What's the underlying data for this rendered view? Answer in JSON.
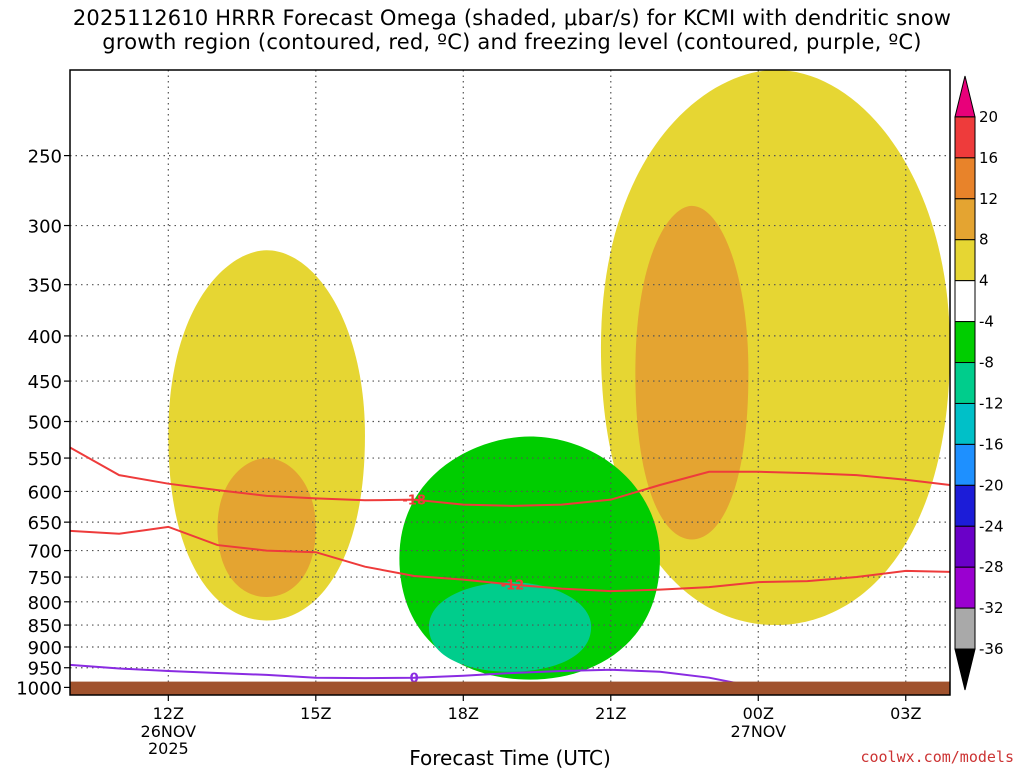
{
  "title_line1": "2025112610 HRRR Forecast Omega (shaded, μbar/s) for KCMI with dendritic snow",
  "title_line2": "growth region (contoured, red, ºC) and freezing level (contoured, purple, ºC)",
  "credit": "coolwx.com/models",
  "chart_data": {
    "type": "heatmap",
    "xlabel": "Forecast Time (UTC)",
    "ylabel": "",
    "x_ticks": [
      {
        "label": "12Z",
        "sub": [
          "26NOV",
          "2025"
        ],
        "hour": 12
      },
      {
        "label": "15Z",
        "sub": [],
        "hour": 15
      },
      {
        "label": "18Z",
        "sub": [],
        "hour": 18
      },
      {
        "label": "21Z",
        "sub": [],
        "hour": 21
      },
      {
        "label": "00Z",
        "sub": [
          "27NOV"
        ],
        "hour": 24
      },
      {
        "label": "03Z",
        "sub": [],
        "hour": 27
      }
    ],
    "xlim_hours": [
      10,
      27.9
    ],
    "y_scale": "log-pressure (inverted)",
    "y_ticks": [
      250,
      300,
      350,
      400,
      450,
      500,
      550,
      600,
      650,
      700,
      750,
      800,
      850,
      900,
      950,
      1000
    ],
    "ylim_hPa": [
      200,
      1020
    ],
    "grid": true,
    "colorbar": {
      "ticks": [
        "20",
        "16",
        "12",
        "8",
        "4",
        "-4",
        "-8",
        "-12",
        "-16",
        "-20",
        "-24",
        "-28",
        "-32",
        "-36"
      ],
      "colors": [
        "#e8007a",
        "#ee3b3b",
        "#e8832a",
        "#e4a431",
        "#e6d633",
        "#ffffff",
        "#00cd00",
        "#00cd8c",
        "#00c0c8",
        "#1e90ff",
        "#1c1cd8",
        "#6a00c8",
        "#9a00d0",
        "#a9a9a9",
        "#000000"
      ]
    },
    "omega_regions": [
      {
        "name": "upward motion 4-8",
        "color": "#e6d633",
        "hour": [
          12,
          16
        ],
        "pressure": [
          320,
          840
        ]
      },
      {
        "name": "upward motion 8-12",
        "color": "#e4a431",
        "hour": [
          13,
          15
        ],
        "pressure": [
          550,
          790
        ]
      },
      {
        "name": "upward motion 4-8",
        "color": "#e6d633",
        "hour": [
          20.8,
          27.9
        ],
        "pressure": [
          200,
          850
        ]
      },
      {
        "name": "upward motion 8-12",
        "color": "#e4a431",
        "hour": [
          21.5,
          23.8
        ],
        "pressure": [
          285,
          680
        ]
      },
      {
        "name": "downward motion -4 to -8",
        "color": "#00cd00",
        "hour": [
          16.7,
          22
        ],
        "pressure": [
          520,
          980
        ]
      },
      {
        "name": "downward motion -8 to -12",
        "color": "#00cd8c",
        "hour": [
          17.3,
          20.6
        ],
        "pressure": [
          760,
          960
        ]
      }
    ],
    "contours": [
      {
        "label": "-18",
        "color": "#ee3b3b",
        "hours": [
          10,
          11,
          12,
          13,
          14,
          15,
          16,
          17,
          18,
          19,
          20,
          21,
          22,
          23,
          24,
          25,
          26,
          27,
          27.9
        ],
        "pressure": [
          535,
          575,
          588,
          598,
          607,
          611,
          614,
          613,
          621,
          623,
          621,
          613,
          590,
          570,
          570,
          572,
          575,
          582,
          590
        ]
      },
      {
        "label": "-12",
        "color": "#ee3b3b",
        "hours": [
          10,
          11,
          11.5,
          12,
          13,
          14,
          15,
          16,
          17,
          18,
          19,
          20,
          21,
          22,
          23,
          24,
          25,
          26,
          27,
          27.9
        ],
        "pressure": [
          665,
          670,
          664,
          658,
          690,
          700,
          703,
          730,
          748,
          755,
          765,
          773,
          778,
          775,
          770,
          760,
          758,
          750,
          738,
          740
        ]
      },
      {
        "label": "0",
        "color": "#8a2be2",
        "hours": [
          10,
          11,
          12,
          13,
          14,
          15,
          16,
          17,
          18,
          19,
          20,
          21,
          22,
          23,
          24
        ],
        "pressure": [
          943,
          952,
          958,
          963,
          968,
          975,
          976,
          975,
          970,
          963,
          958,
          955,
          960,
          975,
          1000
        ]
      }
    ],
    "ground_color": "#a0522d"
  }
}
